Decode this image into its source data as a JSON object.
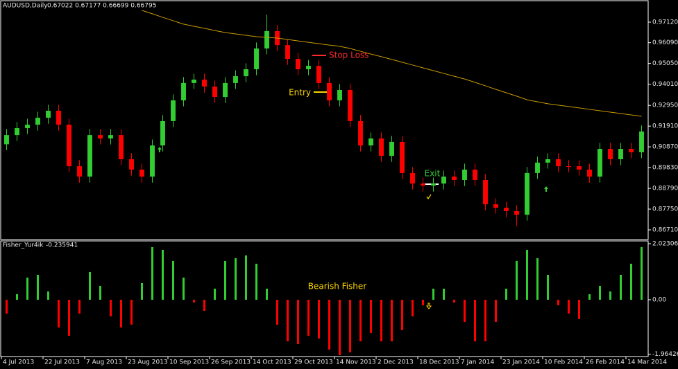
{
  "chart_data": [
    {
      "type": "candlestick",
      "title": "AUDUSD,Daily",
      "subtitle": "0.67022 0.67177 0.66699 0.66795",
      "up_color": "#32cd32",
      "down_color": "#ff0000",
      "xlim": [
        0,
        62
      ],
      "ylim": [
        0.8626,
        0.9816
      ],
      "yticks": [
        {
          "value": 0.9712,
          "label": "0.97120"
        },
        {
          "value": 0.9609,
          "label": "0.96090"
        },
        {
          "value": 0.9505,
          "label": "0.95050"
        },
        {
          "value": 0.9401,
          "label": "0.94010"
        },
        {
          "value": 0.9295,
          "label": "0.92950"
        },
        {
          "value": 0.9191,
          "label": "0.91910"
        },
        {
          "value": 0.9087,
          "label": "0.90870"
        },
        {
          "value": 0.8983,
          "label": "0.89830"
        },
        {
          "value": 0.8879,
          "label": "0.88790"
        },
        {
          "value": 0.8775,
          "label": "0.87750"
        },
        {
          "value": 0.8671,
          "label": "0.86710"
        }
      ],
      "open": [
        0.91,
        0.9146,
        0.9181,
        0.9198,
        0.9233,
        0.9268,
        0.9198,
        0.899,
        0.8938,
        0.9146,
        0.9129,
        0.9146,
        0.9025,
        0.8973,
        0.8938,
        0.9094,
        0.9216,
        0.932,
        0.9407,
        0.9424,
        0.9389,
        0.9337,
        0.9407,
        0.9441,
        0.9476,
        0.958,
        0.9667,
        0.9597,
        0.9528,
        0.9476,
        0.9493,
        0.9407,
        0.932,
        0.9372,
        0.9216,
        0.9094,
        0.9129,
        0.9042,
        0.9112,
        0.8956,
        0.8903,
        0.8893,
        0.8903,
        0.8938,
        0.8921,
        0.8973,
        0.8921,
        0.8799,
        0.8782,
        0.8765,
        0.8747,
        0.8956,
        0.9008,
        0.9025,
        0.899,
        0.899,
        0.8973,
        0.8938,
        0.9077,
        0.9025,
        0.9077,
        0.906
      ],
      "high": [
        0.9176,
        0.9211,
        0.9228,
        0.9263,
        0.9298,
        0.9298,
        0.9228,
        0.902,
        0.9176,
        0.9176,
        0.9176,
        0.9176,
        0.9055,
        0.9003,
        0.9124,
        0.9246,
        0.935,
        0.9437,
        0.9454,
        0.9454,
        0.9419,
        0.9437,
        0.9471,
        0.9506,
        0.961,
        0.975,
        0.9697,
        0.9627,
        0.9558,
        0.9523,
        0.9523,
        0.9437,
        0.9402,
        0.9402,
        0.9246,
        0.9159,
        0.9159,
        0.9142,
        0.9142,
        0.8986,
        0.8933,
        0.8933,
        0.8968,
        0.8968,
        0.9003,
        0.9003,
        0.8951,
        0.8829,
        0.8812,
        0.8795,
        0.8986,
        0.9038,
        0.9055,
        0.9055,
        0.902,
        0.902,
        0.9003,
        0.9107,
        0.9107,
        0.9107,
        0.9107,
        0.9194
      ],
      "low": [
        0.907,
        0.9116,
        0.9151,
        0.9168,
        0.9203,
        0.9168,
        0.896,
        0.8908,
        0.8908,
        0.9099,
        0.9099,
        0.8995,
        0.8943,
        0.8908,
        0.8908,
        0.9064,
        0.9186,
        0.929,
        0.9377,
        0.9359,
        0.9307,
        0.9307,
        0.9377,
        0.9411,
        0.9446,
        0.955,
        0.9567,
        0.9498,
        0.9446,
        0.9446,
        0.9377,
        0.929,
        0.929,
        0.9186,
        0.9064,
        0.9064,
        0.9012,
        0.9012,
        0.8926,
        0.8873,
        0.8863,
        0.8863,
        0.8873,
        0.8891,
        0.8891,
        0.8891,
        0.8769,
        0.8752,
        0.8735,
        0.869,
        0.8717,
        0.8926,
        0.8978,
        0.896,
        0.896,
        0.8943,
        0.8908,
        0.8908,
        0.8995,
        0.8995,
        0.903,
        0.903
      ],
      "close": [
        0.9146,
        0.9181,
        0.9198,
        0.9233,
        0.9268,
        0.9198,
        0.899,
        0.8938,
        0.9146,
        0.9129,
        0.9146,
        0.9025,
        0.8973,
        0.8938,
        0.9094,
        0.9216,
        0.932,
        0.9407,
        0.9424,
        0.9389,
        0.9337,
        0.9407,
        0.9441,
        0.9476,
        0.958,
        0.9667,
        0.9597,
        0.9528,
        0.9476,
        0.9493,
        0.9407,
        0.932,
        0.9372,
        0.9216,
        0.9094,
        0.9129,
        0.9042,
        0.9112,
        0.8956,
        0.8903,
        0.8893,
        0.8903,
        0.8938,
        0.8921,
        0.8973,
        0.8921,
        0.8799,
        0.8782,
        0.8765,
        0.8747,
        0.8956,
        0.9008,
        0.9025,
        0.899,
        0.899,
        0.8973,
        0.8938,
        0.9077,
        0.9025,
        0.9077,
        0.906,
        0.9164
      ],
      "moving_average": {
        "color": "#c89b00",
        "values": [
          null,
          null,
          null,
          null,
          null,
          null,
          null,
          null,
          null,
          null,
          null,
          null,
          null,
          0.9771,
          0.9754,
          0.9736,
          0.9719,
          0.9702,
          0.9691,
          0.9681,
          0.967,
          0.966,
          0.9653,
          0.9646,
          0.9639,
          0.9636,
          0.9632,
          0.9625,
          0.9618,
          0.9611,
          0.9604,
          0.9597,
          0.9591,
          0.958,
          0.9566,
          0.9552,
          0.9539,
          0.9525,
          0.9511,
          0.9497,
          0.9483,
          0.9469,
          0.9455,
          0.9441,
          0.9427,
          0.941,
          0.9393,
          0.9375,
          0.9358,
          0.9341,
          0.9323,
          0.9313,
          0.9303,
          0.9296,
          0.9289,
          0.9282,
          0.9275,
          0.9268,
          0.9261,
          0.9254,
          0.9247,
          0.924
        ]
      },
      "annotations": [
        {
          "text": "Stop Loss",
          "color": "#ff2a2a"
        },
        {
          "text": "Entry",
          "color": "#ffd700"
        },
        {
          "text": "Exit",
          "color": "#32cd32"
        }
      ]
    },
    {
      "type": "bar",
      "title": "Fisher_Yur4ik",
      "subtitle": "-0.235941",
      "positive_color": "#32cd32",
      "negative_color": "#ff0000",
      "xlim": [
        0,
        62
      ],
      "ylim": [
        -2.05,
        2.123
      ],
      "yticks": [
        {
          "value": 2.023062,
          "label": "2.023062"
        },
        {
          "value": 0,
          "label": "0.00"
        },
        {
          "value": -1.964268,
          "label": "-1.964268"
        }
      ],
      "xticks": [
        {
          "value": 0,
          "label": "4 Jul 2013"
        },
        {
          "value": 4,
          "label": "22 Jul 2013"
        },
        {
          "value": 8,
          "label": "7 Aug 2013"
        },
        {
          "value": 12,
          "label": "23 Aug 2013"
        },
        {
          "value": 16,
          "label": "10 Sep 2013"
        },
        {
          "value": 20,
          "label": "26 Sep 2013"
        },
        {
          "value": 24,
          "label": "14 Oct 2013"
        },
        {
          "value": 28,
          "label": "29 Oct 2013"
        },
        {
          "value": 32,
          "label": "14 Nov 2013"
        },
        {
          "value": 36,
          "label": "2 Dec 2013"
        },
        {
          "value": 40,
          "label": "18 Dec 2013"
        },
        {
          "value": 44,
          "label": "7 Jan 2014"
        },
        {
          "value": 48,
          "label": "23 Jan 2014"
        },
        {
          "value": 52,
          "label": "10 Feb 2014"
        },
        {
          "value": 56,
          "label": "26 Feb 2014"
        },
        {
          "value": 60,
          "label": "14 Mar 2014"
        }
      ],
      "values": [
        -0.5,
        0.2,
        0.8,
        0.9,
        0.3,
        -1.0,
        -1.3,
        -0.5,
        1.0,
        0.5,
        -0.6,
        -1.0,
        -0.9,
        0.6,
        1.9,
        1.8,
        1.4,
        0.8,
        -0.1,
        -0.4,
        0.4,
        1.4,
        1.5,
        1.6,
        1.3,
        0.4,
        -0.9,
        -1.5,
        -1.6,
        -1.3,
        -1.4,
        -1.8,
        -2.0,
        -1.9,
        -1.5,
        -1.2,
        -1.5,
        -1.5,
        -1.1,
        -0.6,
        -0.2,
        0.4,
        0.4,
        -0.1,
        -0.8,
        -1.5,
        -1.5,
        -0.8,
        0.4,
        1.4,
        1.8,
        1.5,
        0.9,
        -0.2,
        -0.5,
        -0.7,
        0.2,
        0.5,
        0.3,
        0.9,
        1.3,
        1.9
      ],
      "annotations": [
        {
          "text": "Bearish Fisher",
          "color": "#ffd700"
        }
      ]
    }
  ]
}
